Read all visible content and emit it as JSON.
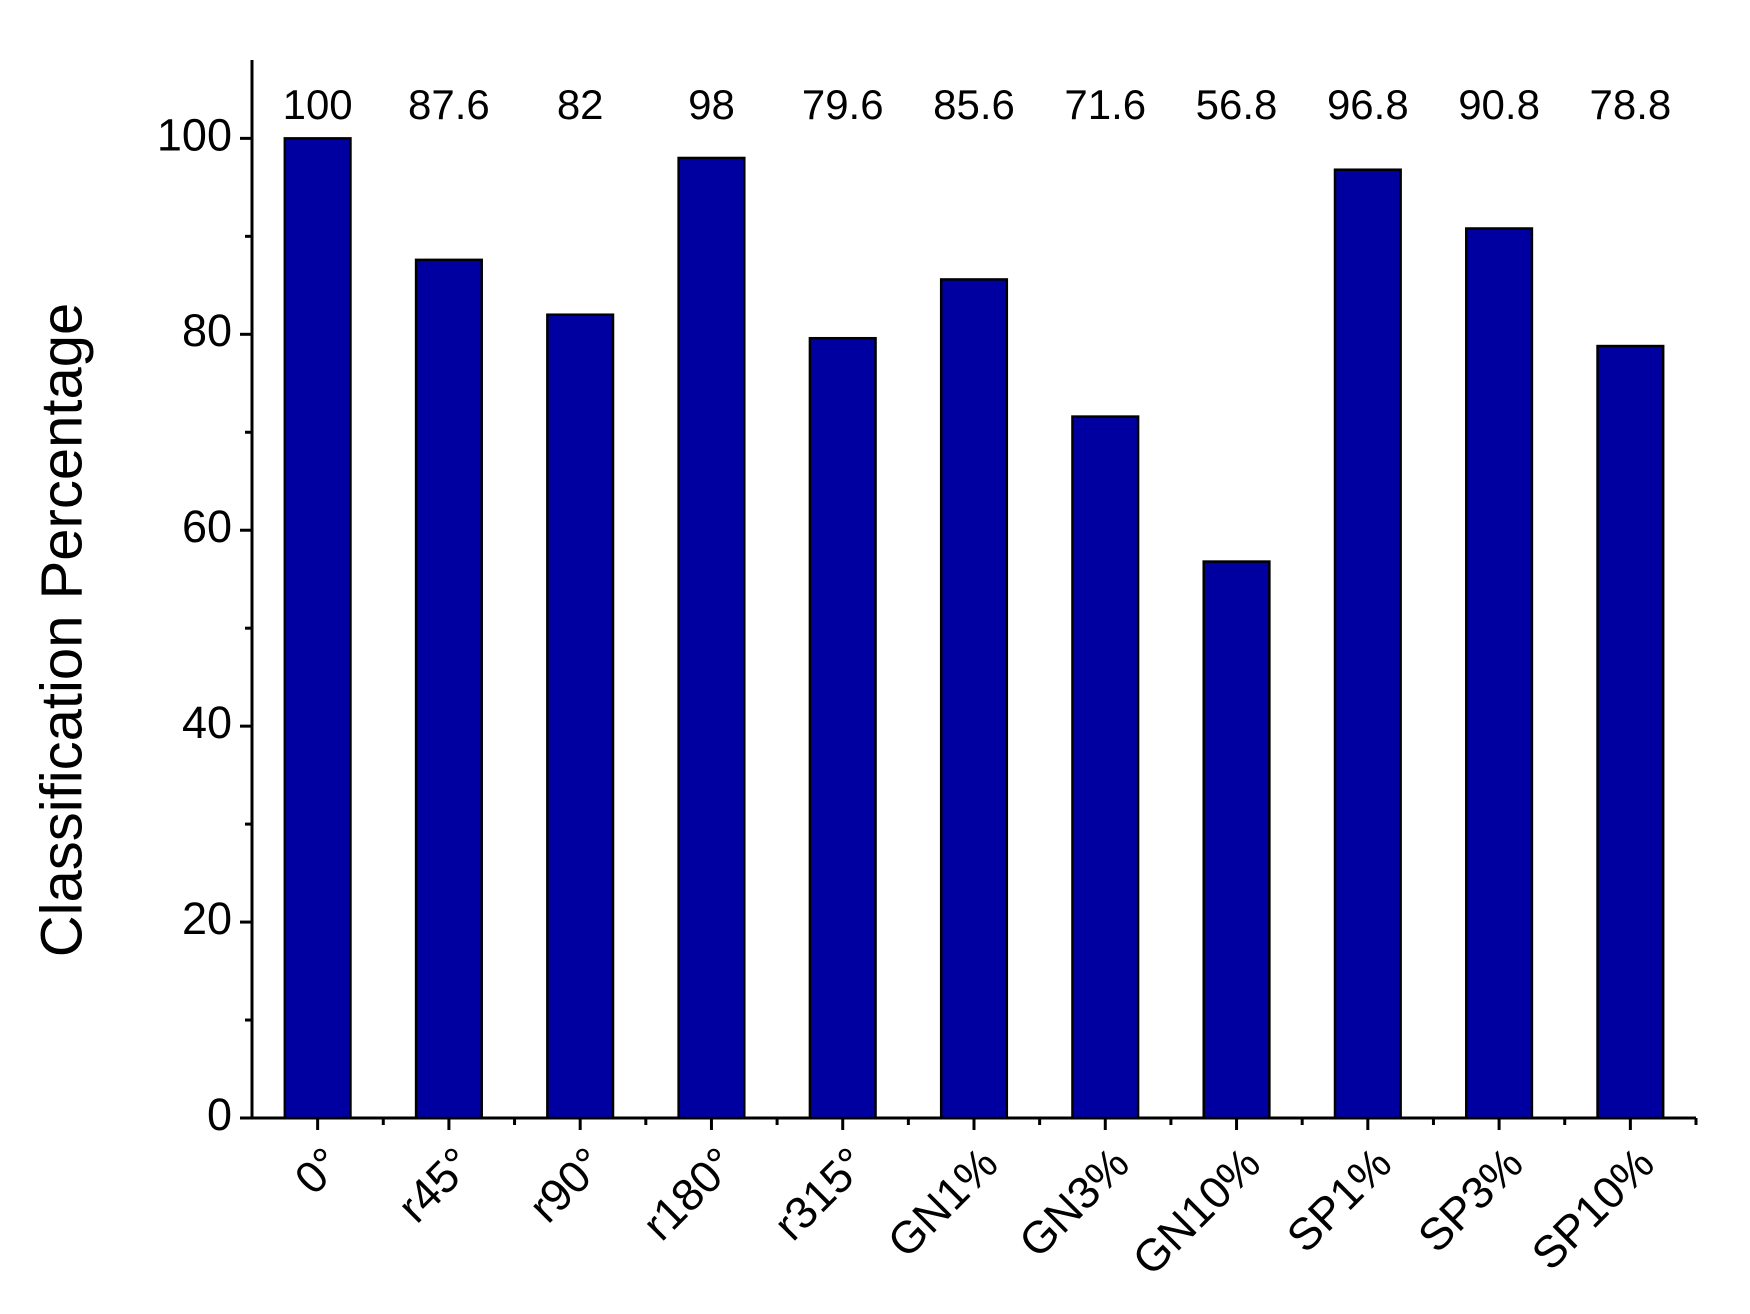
{
  "chart_data": {
    "type": "bar",
    "y_label": "Classification Percentage",
    "categories": [
      "0°",
      "r45°",
      "r90°",
      "r180°",
      "r315°",
      "GN1%",
      "GN3%",
      "GN10%",
      "SP1%",
      "SP3%",
      "SP10%"
    ],
    "values": [
      100,
      87.6,
      82,
      98,
      79.6,
      85.6,
      71.6,
      56.8,
      96.8,
      90.8,
      78.8
    ],
    "color": "#0000a0",
    "ylim": [
      0,
      108
    ],
    "yticks": [
      0,
      20,
      40,
      60,
      80,
      100
    ],
    "grid": false
  }
}
